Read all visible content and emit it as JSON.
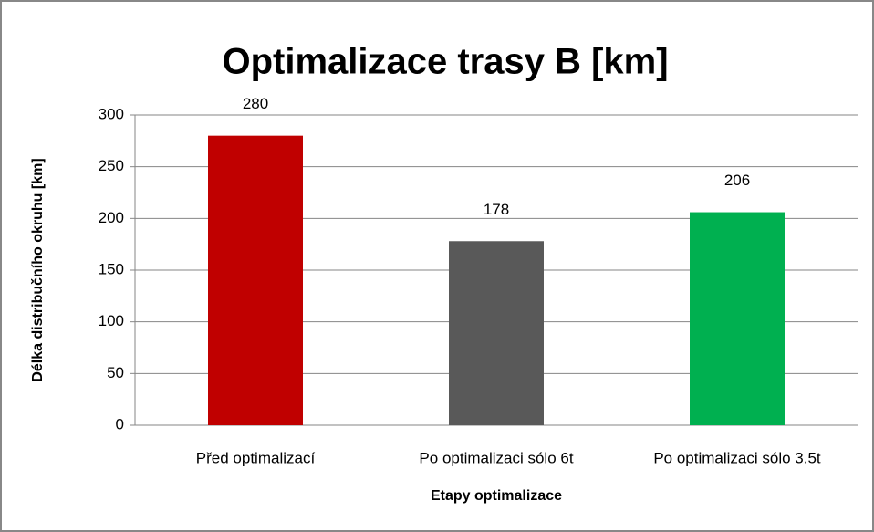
{
  "chart_data": {
    "type": "bar",
    "title": "Optimalizace trasy B [km]",
    "x_label": "Etapy optimalizace",
    "y_label": "Délka distribučního okruhu [km]",
    "categories": [
      "Před optimalizací",
      "Po optimalizaci sólo 6t",
      "Po optimalizaci sólo 3.5t"
    ],
    "values": [
      280,
      178,
      206
    ],
    "colors": [
      "#c00000",
      "#595959",
      "#00b050"
    ],
    "ylim": [
      0,
      300
    ],
    "yticks": [
      0,
      50,
      100,
      150,
      200,
      250,
      300
    ],
    "grid": true,
    "data_labels": true
  }
}
